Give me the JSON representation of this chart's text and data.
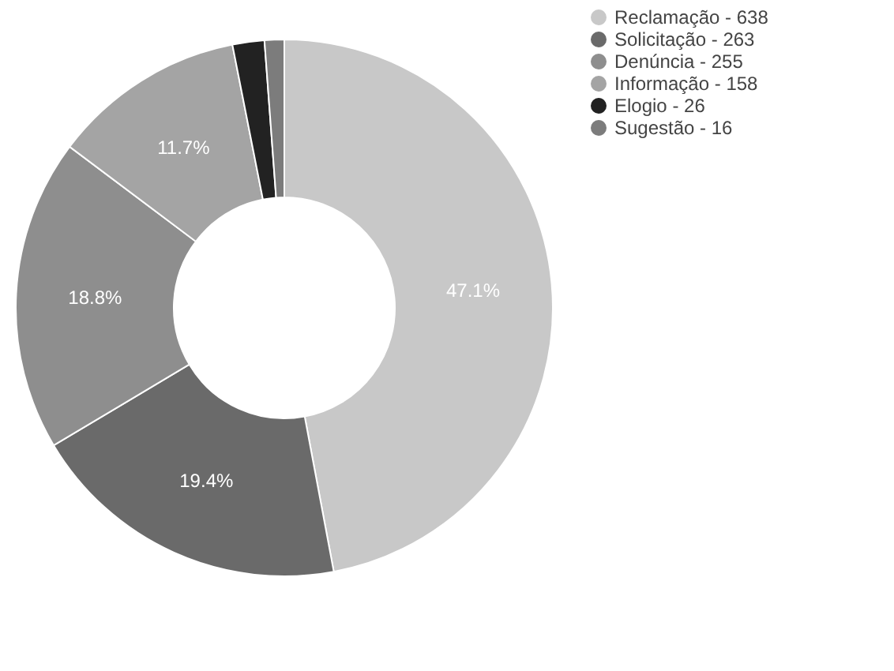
{
  "chart_data": {
    "type": "donut",
    "categories": [
      "Reclamação - 638",
      "Solicitação - 263",
      "Denúncia - 255",
      "Informação - 158",
      "Elogio - 26",
      "Sugestão - 16"
    ],
    "values": [
      47.05,
      19.39,
      18.81,
      11.65,
      1.92,
      1.18
    ],
    "colors": [
      "#c8c8c8",
      "#6a6a6a",
      "#8e8e8e",
      "#a4a4a4",
      "#222222",
      "#7c7c7c"
    ],
    "value_labels": [
      "47.1%",
      "19.4%",
      "18.8%",
      "11.7%",
      null,
      null
    ],
    "legend": "top right"
  }
}
